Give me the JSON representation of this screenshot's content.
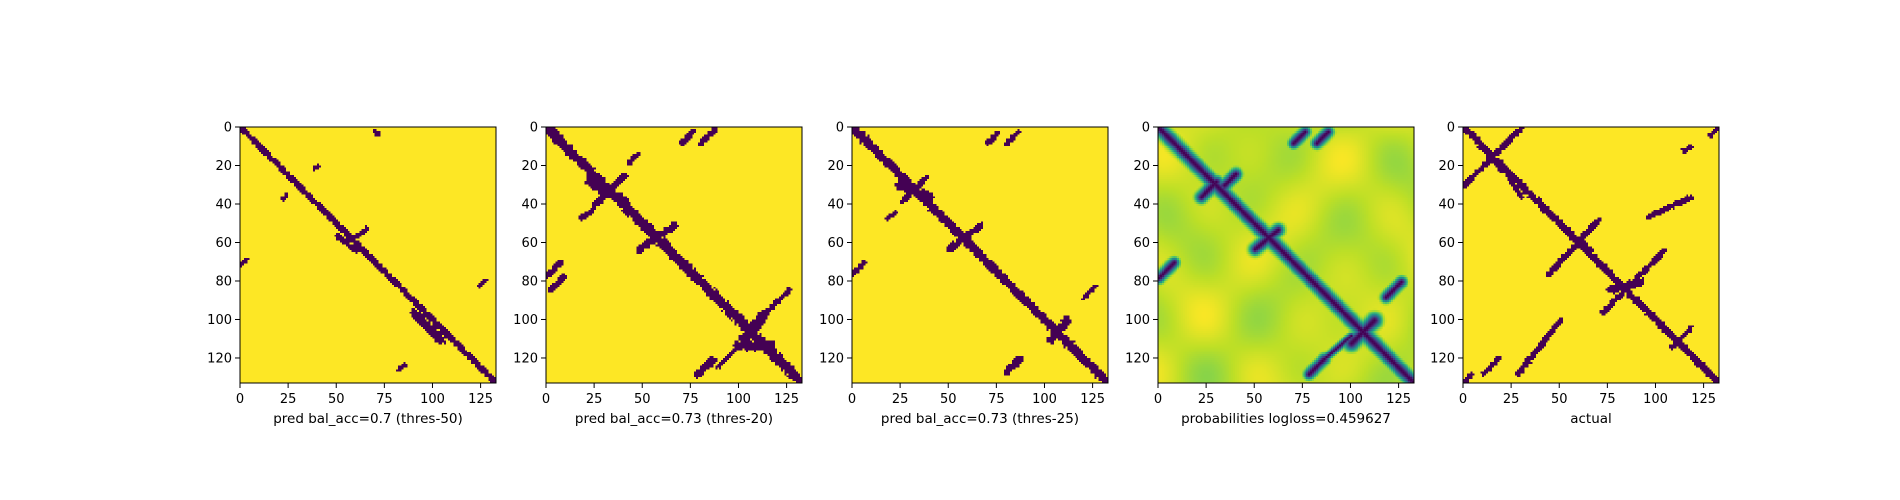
{
  "chart_data": [
    {
      "type": "heatmap",
      "xlabel": "pred bal_acc=0.7 (thres-50)",
      "xticks": [
        0,
        25,
        50,
        75,
        100,
        125
      ],
      "yticks": [
        0,
        20,
        40,
        60,
        80,
        100,
        120
      ],
      "xlim": [
        0,
        133
      ],
      "ylim": [
        133,
        0
      ],
      "matrix_size": 133,
      "value_kind": "binary",
      "colors": {
        "low": "#440154",
        "high": "#fde725"
      },
      "features": [
        {
          "kind": "diagonal",
          "halfwidth": 1.6
        },
        {
          "kind": "segment",
          "x1": 90,
          "y1": 96,
          "x2": 104,
          "y2": 110,
          "halfwidth": 2.4
        },
        {
          "kind": "segment",
          "x1": 50,
          "y1": 56,
          "x2": 60,
          "y2": 64,
          "halfwidth": 1.4
        },
        {
          "kind": "segment",
          "x1": 70,
          "y1": 2,
          "x2": 71,
          "y2": 3,
          "halfwidth": 1.4
        },
        {
          "kind": "segment",
          "x1": 38,
          "y1": 21,
          "x2": 40,
          "y2": 20,
          "halfwidth": 1.2
        },
        {
          "kind": "segment",
          "x1": 22,
          "y1": 37,
          "x2": 24,
          "y2": 35,
          "halfwidth": 1.2
        },
        {
          "kind": "segment",
          "x1": 58,
          "y1": 58,
          "x2": 66,
          "y2": 52,
          "halfwidth": 1.2
        },
        {
          "kind": "segment",
          "x1": 0,
          "y1": 71,
          "x2": 3,
          "y2": 68,
          "halfwidth": 1.2
        },
        {
          "kind": "segment",
          "x1": 124,
          "y1": 82,
          "x2": 127,
          "y2": 79,
          "halfwidth": 1.2
        },
        {
          "kind": "segment",
          "x1": 82,
          "y1": 126,
          "x2": 85,
          "y2": 123,
          "halfwidth": 1.2
        }
      ]
    },
    {
      "type": "heatmap",
      "xlabel": "pred bal_acc=0.73 (thres-20)",
      "xticks": [
        0,
        25,
        50,
        75,
        100,
        125
      ],
      "yticks": [
        0,
        20,
        40,
        60,
        80,
        100,
        120
      ],
      "xlim": [
        0,
        133
      ],
      "ylim": [
        133,
        0
      ],
      "matrix_size": 133,
      "value_kind": "binary",
      "colors": {
        "low": "#440154",
        "high": "#fde725"
      },
      "features": [
        {
          "kind": "diagonal",
          "halfwidth": 2.6
        },
        {
          "kind": "segment",
          "x1": 22,
          "y1": 28,
          "x2": 40,
          "y2": 38,
          "halfwidth": 2.6
        },
        {
          "kind": "segment",
          "x1": 25,
          "y1": 40,
          "x2": 40,
          "y2": 25,
          "halfwidth": 1.8
        },
        {
          "kind": "segment",
          "x1": 18,
          "y1": 47,
          "x2": 23,
          "y2": 43,
          "halfwidth": 1.4
        },
        {
          "kind": "segment",
          "x1": 43,
          "y1": 18,
          "x2": 47,
          "y2": 14,
          "halfwidth": 1.4
        },
        {
          "kind": "segment",
          "x1": 48,
          "y1": 63,
          "x2": 66,
          "y2": 51,
          "halfwidth": 2.0
        },
        {
          "kind": "segment",
          "x1": 70,
          "y1": 8,
          "x2": 76,
          "y2": 2,
          "halfwidth": 1.6
        },
        {
          "kind": "segment",
          "x1": 80,
          "y1": 8,
          "x2": 87,
          "y2": 1,
          "halfwidth": 1.6
        },
        {
          "kind": "segment",
          "x1": 0,
          "y1": 77,
          "x2": 7,
          "y2": 70,
          "halfwidth": 1.6
        },
        {
          "kind": "segment",
          "x1": 2,
          "y1": 84,
          "x2": 9,
          "y2": 77,
          "halfwidth": 1.6
        },
        {
          "kind": "segment",
          "x1": 102,
          "y1": 110,
          "x2": 112,
          "y2": 98,
          "halfwidth": 2.6
        },
        {
          "kind": "segment",
          "x1": 112,
          "y1": 98,
          "x2": 126,
          "y2": 84,
          "halfwidth": 1.4
        },
        {
          "kind": "segment",
          "x1": 100,
          "y1": 113,
          "x2": 116,
          "y2": 113,
          "halfwidth": 2.6
        },
        {
          "kind": "segment",
          "x1": 78,
          "y1": 128,
          "x2": 86,
          "y2": 121,
          "halfwidth": 2.0
        },
        {
          "kind": "segment",
          "x1": 89,
          "y1": 124,
          "x2": 100,
          "y2": 113,
          "halfwidth": 1.2
        }
      ]
    },
    {
      "type": "heatmap",
      "xlabel": "pred bal_acc=0.73 (thres-25)",
      "xticks": [
        0,
        25,
        50,
        75,
        100,
        125
      ],
      "yticks": [
        0,
        20,
        40,
        60,
        80,
        100,
        120
      ],
      "xlim": [
        0,
        133
      ],
      "ylim": [
        133,
        0
      ],
      "matrix_size": 133,
      "value_kind": "binary",
      "colors": {
        "low": "#440154",
        "high": "#fde725"
      },
      "features": [
        {
          "kind": "diagonal",
          "halfwidth": 2.3
        },
        {
          "kind": "segment",
          "x1": 24,
          "y1": 30,
          "x2": 40,
          "y2": 36,
          "halfwidth": 2.3
        },
        {
          "kind": "segment",
          "x1": 26,
          "y1": 38,
          "x2": 38,
          "y2": 26,
          "halfwidth": 1.6
        },
        {
          "kind": "segment",
          "x1": 18,
          "y1": 47,
          "x2": 22,
          "y2": 44,
          "halfwidth": 1.2
        },
        {
          "kind": "segment",
          "x1": 50,
          "y1": 63,
          "x2": 66,
          "y2": 51,
          "halfwidth": 1.8
        },
        {
          "kind": "segment",
          "x1": 70,
          "y1": 8,
          "x2": 75,
          "y2": 3,
          "halfwidth": 1.4
        },
        {
          "kind": "segment",
          "x1": 80,
          "y1": 8,
          "x2": 86,
          "y2": 2,
          "halfwidth": 1.4
        },
        {
          "kind": "segment",
          "x1": 0,
          "y1": 76,
          "x2": 6,
          "y2": 70,
          "halfwidth": 1.4
        },
        {
          "kind": "segment",
          "x1": 103,
          "y1": 110,
          "x2": 111,
          "y2": 100,
          "halfwidth": 2.2
        },
        {
          "kind": "segment",
          "x1": 120,
          "y1": 88,
          "x2": 126,
          "y2": 82,
          "halfwidth": 1.2
        },
        {
          "kind": "segment",
          "x1": 80,
          "y1": 127,
          "x2": 87,
          "y2": 120,
          "halfwidth": 1.8
        }
      ]
    },
    {
      "type": "heatmap",
      "xlabel": "probabilities logloss=0.459627",
      "xticks": [
        0,
        25,
        50,
        75,
        100,
        125
      ],
      "yticks": [
        0,
        20,
        40,
        60,
        80,
        100,
        120
      ],
      "xlim": [
        0,
        133
      ],
      "ylim": [
        133,
        0
      ],
      "matrix_size": 133,
      "value_kind": "continuous",
      "colors": {
        "low": "#440154",
        "high": "#fde725"
      },
      "features": [
        {
          "kind": "diagonal",
          "halfwidth": 2.2
        },
        {
          "kind": "segment",
          "x1": 22,
          "y1": 36,
          "x2": 30,
          "y2": 28,
          "halfwidth": 2.0
        },
        {
          "kind": "segment",
          "x1": 34,
          "y1": 30,
          "x2": 40,
          "y2": 24,
          "halfwidth": 2.0
        },
        {
          "kind": "segment",
          "x1": 50,
          "y1": 63,
          "x2": 62,
          "y2": 53,
          "halfwidth": 2.0
        },
        {
          "kind": "segment",
          "x1": 70,
          "y1": 8,
          "x2": 76,
          "y2": 2,
          "halfwidth": 1.8
        },
        {
          "kind": "segment",
          "x1": 82,
          "y1": 8,
          "x2": 88,
          "y2": 2,
          "halfwidth": 1.8
        },
        {
          "kind": "segment",
          "x1": 0,
          "y1": 78,
          "x2": 8,
          "y2": 70,
          "halfwidth": 1.8
        },
        {
          "kind": "segment",
          "x1": 100,
          "y1": 112,
          "x2": 112,
          "y2": 100,
          "halfwidth": 2.4
        },
        {
          "kind": "segment",
          "x1": 118,
          "y1": 88,
          "x2": 126,
          "y2": 80,
          "halfwidth": 1.8
        },
        {
          "kind": "segment",
          "x1": 78,
          "y1": 128,
          "x2": 86,
          "y2": 120,
          "halfwidth": 1.8
        },
        {
          "kind": "segment",
          "x1": 86,
          "y1": 120,
          "x2": 100,
          "y2": 108,
          "halfwidth": 1.2
        }
      ]
    },
    {
      "type": "heatmap",
      "xlabel": "actual",
      "xticks": [
        0,
        25,
        50,
        75,
        100,
        125
      ],
      "yticks": [
        0,
        20,
        40,
        60,
        80,
        100,
        120
      ],
      "xlim": [
        0,
        133
      ],
      "ylim": [
        133,
        0
      ],
      "matrix_size": 133,
      "value_kind": "binary",
      "colors": {
        "low": "#440154",
        "high": "#fde725"
      },
      "features": [
        {
          "kind": "diagonal",
          "halfwidth": 1.8
        },
        {
          "kind": "segment",
          "x1": 0,
          "y1": 30,
          "x2": 30,
          "y2": 0,
          "halfwidth": 1.5
        },
        {
          "kind": "segment",
          "x1": 8,
          "y1": 8,
          "x2": 20,
          "y2": 22,
          "halfwidth": 1.8
        },
        {
          "kind": "segment",
          "x1": 20,
          "y1": 20,
          "x2": 30,
          "y2": 36,
          "halfwidth": 1.3
        },
        {
          "kind": "segment",
          "x1": 44,
          "y1": 76,
          "x2": 70,
          "y2": 48,
          "halfwidth": 1.6
        },
        {
          "kind": "segment",
          "x1": 56,
          "y1": 56,
          "x2": 66,
          "y2": 64,
          "halfwidth": 1.8
        },
        {
          "kind": "segment",
          "x1": 72,
          "y1": 96,
          "x2": 104,
          "y2": 64,
          "halfwidth": 1.5
        },
        {
          "kind": "segment",
          "x1": 96,
          "y1": 46,
          "x2": 118,
          "y2": 36,
          "halfwidth": 1.5
        },
        {
          "kind": "segment",
          "x1": 28,
          "y1": 128,
          "x2": 50,
          "y2": 100,
          "halfwidth": 1.5
        },
        {
          "kind": "segment",
          "x1": 10,
          "y1": 128,
          "x2": 18,
          "y2": 120,
          "halfwidth": 1.3
        },
        {
          "kind": "segment",
          "x1": 76,
          "y1": 84,
          "x2": 92,
          "y2": 80,
          "halfwidth": 2.0
        },
        {
          "kind": "segment",
          "x1": 108,
          "y1": 114,
          "x2": 118,
          "y2": 104,
          "halfwidth": 1.2
        },
        {
          "kind": "segment",
          "x1": 114,
          "y1": 12,
          "x2": 118,
          "y2": 10,
          "halfwidth": 1.2
        },
        {
          "kind": "segment",
          "x1": 128,
          "y1": 4,
          "x2": 132,
          "y2": 0,
          "halfwidth": 1.2
        },
        {
          "kind": "segment",
          "x1": 0,
          "y1": 132,
          "x2": 4,
          "y2": 128,
          "halfwidth": 1.2
        }
      ]
    }
  ]
}
